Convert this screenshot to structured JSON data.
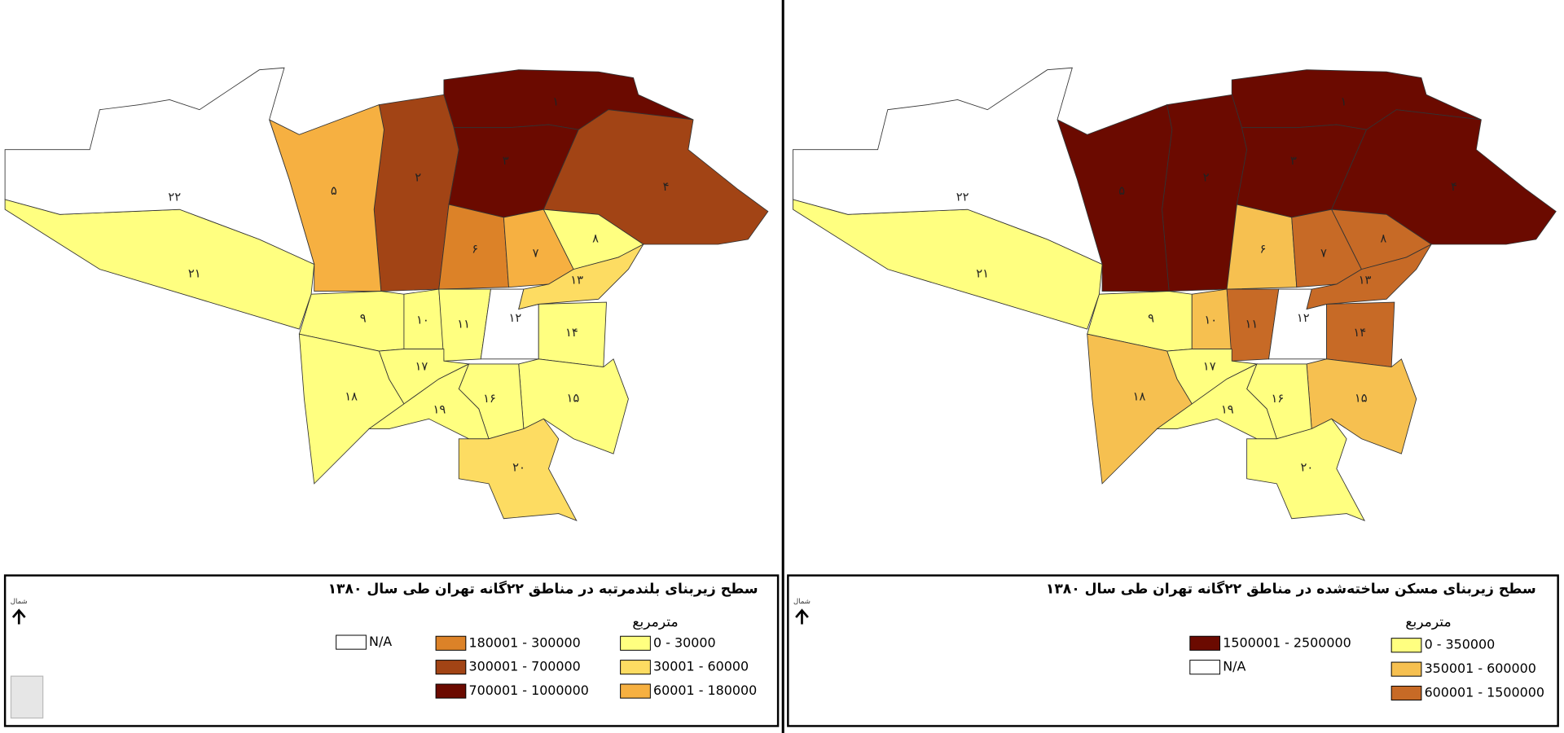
{
  "maps": [
    {
      "title": "سطح زیربنای بلندمرتبه در مناطق ۲۲گانه تهران طی سال ۱۳۸۰",
      "unit": "مترمربع",
      "north_label": "شمال",
      "legend": [
        {
          "label": "0 - 30000",
          "color": "#ffff80"
        },
        {
          "label": "30001 - 60000",
          "color": "#fddc62"
        },
        {
          "label": "60001 - 180000",
          "color": "#f6b041"
        },
        {
          "label": "180001 - 300000",
          "color": "#dc8228"
        },
        {
          "label": "300001 - 700000",
          "color": "#a24415"
        },
        {
          "label": "700001 - 1000000",
          "color": "#6b0a00"
        },
        {
          "label": "N/A",
          "color": "#ffffff"
        }
      ],
      "districts": [
        {
          "label": "۱",
          "class": 5
        },
        {
          "label": "۲",
          "class": 4
        },
        {
          "label": "۳",
          "class": 5
        },
        {
          "label": "۴",
          "class": 4
        },
        {
          "label": "۵",
          "class": 2
        },
        {
          "label": "۶",
          "class": 3
        },
        {
          "label": "۷",
          "class": 2
        },
        {
          "label": "۸",
          "class": 0
        },
        {
          "label": "۹",
          "class": 0
        },
        {
          "label": "۱۰",
          "class": 0
        },
        {
          "label": "۱۱",
          "class": 0
        },
        {
          "label": "۱۲",
          "class": 6
        },
        {
          "label": "۱۳",
          "class": 1
        },
        {
          "label": "۱۴",
          "class": 0
        },
        {
          "label": "۱۵",
          "class": 0
        },
        {
          "label": "۱۶",
          "class": 0
        },
        {
          "label": "۱۷",
          "class": 0
        },
        {
          "label": "۱۸",
          "class": 0
        },
        {
          "label": "۱۹",
          "class": 0
        },
        {
          "label": "۲۰",
          "class": 1
        },
        {
          "label": "۲۱",
          "class": 0
        },
        {
          "label": "۲۲",
          "class": 6
        }
      ]
    },
    {
      "title": "سطح زیربنای مسکن ساخته‌شده در مناطق ۲۲گانه تهران طی سال ۱۳۸۰",
      "unit": "مترمربع",
      "north_label": "شمال",
      "legend": [
        {
          "label": "0 - 350000",
          "color": "#ffff80"
        },
        {
          "label": "350001 - 600000",
          "color": "#f6c050"
        },
        {
          "label": "600001 - 1500000",
          "color": "#c76a26"
        },
        {
          "label": "1500001 - 2500000",
          "color": "#6b0a00"
        },
        {
          "label": "N/A",
          "color": "#ffffff"
        }
      ],
      "districts": [
        {
          "label": "۱",
          "class": 3
        },
        {
          "label": "۲",
          "class": 3
        },
        {
          "label": "۳",
          "class": 3
        },
        {
          "label": "۴",
          "class": 3
        },
        {
          "label": "۵",
          "class": 3
        },
        {
          "label": "۶",
          "class": 1
        },
        {
          "label": "۷",
          "class": 2
        },
        {
          "label": "۸",
          "class": 2
        },
        {
          "label": "۹",
          "class": 0
        },
        {
          "label": "۱۰",
          "class": 1
        },
        {
          "label": "۱۱",
          "class": 2
        },
        {
          "label": "۱۲",
          "class": 4
        },
        {
          "label": "۱۳",
          "class": 2
        },
        {
          "label": "۱۴",
          "class": 2
        },
        {
          "label": "۱۵",
          "class": 1
        },
        {
          "label": "۱۶",
          "class": 0
        },
        {
          "label": "۱۷",
          "class": 0
        },
        {
          "label": "۱۸",
          "class": 1
        },
        {
          "label": "۱۹",
          "class": 0
        },
        {
          "label": "۲۰",
          "class": 0
        },
        {
          "label": "۲۱",
          "class": 0
        },
        {
          "label": "۲۲",
          "class": 4
        }
      ]
    }
  ]
}
